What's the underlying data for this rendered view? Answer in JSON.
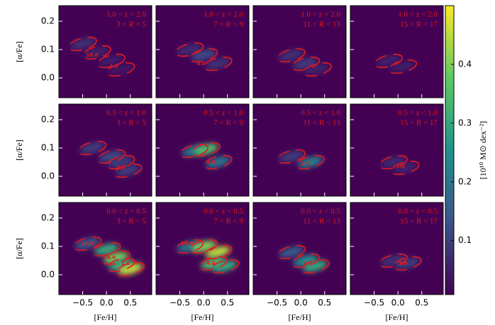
{
  "chart_data": {
    "type": "heatmap",
    "xlabel": "[Fe/H]",
    "ylabel": "[α/Fe]",
    "colorbar_label": "[10¹⁰ M⊙ dex⁻²]",
    "colormap": "viridis",
    "contour_color": "#e31a1c",
    "xlim": [
      -1.0,
      0.95
    ],
    "ylim": [
      -0.07,
      0.255
    ],
    "xticks": [
      {
        "value": -0.5,
        "label": "−0.5"
      },
      {
        "value": 0,
        "label": "0.0"
      },
      0.5
    ],
    "yticks": [
      {
        "value": 0,
        "label": "0.0"
      },
      0.1,
      0.2
    ],
    "clim": [
      0.008,
      0.5
    ],
    "cticks": [
      0.1,
      0.2,
      0.3,
      0.4
    ],
    "panels": [
      {
        "z_label": "1.0 < z < 2.0",
        "r_label": "3 < R < 5",
        "blobs": [
          {
            "x": -0.5,
            "y": 0.12,
            "value": 0.08
          },
          {
            "x": -0.2,
            "y": 0.09,
            "value": 0.06
          },
          {
            "x": 0.1,
            "y": 0.06,
            "value": 0.05
          },
          {
            "x": 0.3,
            "y": 0.03,
            "value": 0.04
          }
        ],
        "contour_labels": [
          {
            "x": -0.3,
            "y": 0.08,
            "label": "10.0"
          },
          {
            "x": 0.15,
            "y": 0.04,
            "label": "4.0"
          }
        ]
      },
      {
        "z_label": "1.0 < z < 2.0",
        "r_label": "7 < R < 9",
        "blobs": [
          {
            "x": -0.3,
            "y": 0.1,
            "value": 0.07
          },
          {
            "x": 0.0,
            "y": 0.08,
            "value": 0.12
          },
          {
            "x": 0.3,
            "y": 0.05,
            "value": 0.08
          }
        ],
        "contour_labels": [
          {
            "x": -0.05,
            "y": 0.05,
            "label": "4.0"
          }
        ]
      },
      {
        "z_label": "1.0 < z < 2.0",
        "r_label": "11 < R < 13",
        "blobs": [
          {
            "x": -0.2,
            "y": 0.08,
            "value": 0.08
          },
          {
            "x": 0.1,
            "y": 0.05,
            "value": 0.1
          },
          {
            "x": 0.35,
            "y": 0.03,
            "value": 0.06
          }
        ],
        "contour_labels": []
      },
      {
        "z_label": "1.0 < z < 2.0",
        "r_label": "15 < R < 17",
        "blobs": [
          {
            "x": -0.2,
            "y": 0.06,
            "value": 0.06
          },
          {
            "x": 0.1,
            "y": 0.04,
            "value": 0.05
          }
        ],
        "contour_labels": []
      },
      {
        "z_label": "0.5 < z < 1.0",
        "r_label": "3 < R < 5",
        "blobs": [
          {
            "x": -0.3,
            "y": 0.1,
            "value": 0.1
          },
          {
            "x": 0.1,
            "y": 0.07,
            "value": 0.12
          },
          {
            "x": 0.3,
            "y": 0.05,
            "value": 0.1
          },
          {
            "x": 0.45,
            "y": 0.02,
            "value": 0.1
          }
        ],
        "contour_labels": [
          {
            "x": 0.3,
            "y": 0.03,
            "label": "4.0"
          }
        ]
      },
      {
        "z_label": "0.5 < z < 1.0",
        "r_label": "7 < R < 9",
        "blobs": [
          {
            "x": -0.2,
            "y": 0.09,
            "value": 0.2
          },
          {
            "x": 0.05,
            "y": 0.095,
            "value": 0.35
          },
          {
            "x": 0.3,
            "y": 0.05,
            "value": 0.2
          }
        ],
        "contour_labels": [
          {
            "x": 0.15,
            "y": 0.05,
            "label": "4.0"
          }
        ]
      },
      {
        "z_label": "0.5 < z < 1.0",
        "r_label": "11 < R < 13",
        "blobs": [
          {
            "x": -0.2,
            "y": 0.07,
            "value": 0.1
          },
          {
            "x": 0.2,
            "y": 0.05,
            "value": 0.22
          }
        ],
        "contour_labels": [
          {
            "x": 0.1,
            "y": 0.045,
            "label": "2.0"
          }
        ]
      },
      {
        "z_label": "0.5 < z < 1.0",
        "r_label": "15 < R < 17",
        "blobs": [
          {
            "x": -0.1,
            "y": 0.05,
            "value": 0.07
          },
          {
            "x": 0.15,
            "y": 0.03,
            "value": 0.06
          }
        ],
        "contour_labels": [
          {
            "x": 0.05,
            "y": 0.035,
            "label": "2.0"
          }
        ]
      },
      {
        "z_label": "0.0 < z < 0.5",
        "r_label": "3 < R < 5",
        "blobs": [
          {
            "x": -0.4,
            "y": 0.11,
            "value": 0.15
          },
          {
            "x": 0.0,
            "y": 0.09,
            "value": 0.3
          },
          {
            "x": 0.2,
            "y": 0.06,
            "value": 0.4
          },
          {
            "x": 0.3,
            "y": 0.035,
            "value": 0.3
          },
          {
            "x": 0.5,
            "y": 0.02,
            "value": 0.45
          }
        ],
        "contour_labels": [
          {
            "x": -0.4,
            "y": 0.11,
            "label": "10.0"
          },
          {
            "x": 0.1,
            "y": 0.06,
            "label": "4.0"
          },
          {
            "x": 0.4,
            "y": 0.04,
            "label": "2.0"
          }
        ]
      },
      {
        "z_label": "0.0 < z < 0.5",
        "r_label": "7 < R < 9",
        "blobs": [
          {
            "x": -0.3,
            "y": 0.1,
            "value": 0.2
          },
          {
            "x": 0.0,
            "y": 0.1,
            "value": 0.4
          },
          {
            "x": 0.3,
            "y": 0.08,
            "value": 0.45
          },
          {
            "x": 0.2,
            "y": 0.04,
            "value": 0.35
          },
          {
            "x": 0.45,
            "y": 0.03,
            "value": 0.3
          }
        ],
        "contour_labels": [
          {
            "x": -0.35,
            "y": 0.11,
            "label": "10.0"
          },
          {
            "x": 0.15,
            "y": 0.04,
            "label": "4.0"
          }
        ]
      },
      {
        "z_label": "0.0 < z < 0.5",
        "r_label": "11 < R < 13",
        "blobs": [
          {
            "x": -0.2,
            "y": 0.08,
            "value": 0.15
          },
          {
            "x": 0.1,
            "y": 0.05,
            "value": 0.25
          },
          {
            "x": 0.3,
            "y": 0.03,
            "value": 0.3
          }
        ],
        "contour_labels": [
          {
            "x": 0.15,
            "y": 0.04,
            "label": "2.0"
          }
        ]
      },
      {
        "z_label": "0.0 < z < 0.5",
        "r_label": "15 < R < 17",
        "blobs": [
          {
            "x": -0.1,
            "y": 0.05,
            "value": 0.08
          },
          {
            "x": 0.2,
            "y": 0.04,
            "value": 0.1
          }
        ],
        "contour_labels": [
          {
            "x": 0.1,
            "y": 0.04,
            "label": "2.0"
          }
        ]
      }
    ]
  }
}
